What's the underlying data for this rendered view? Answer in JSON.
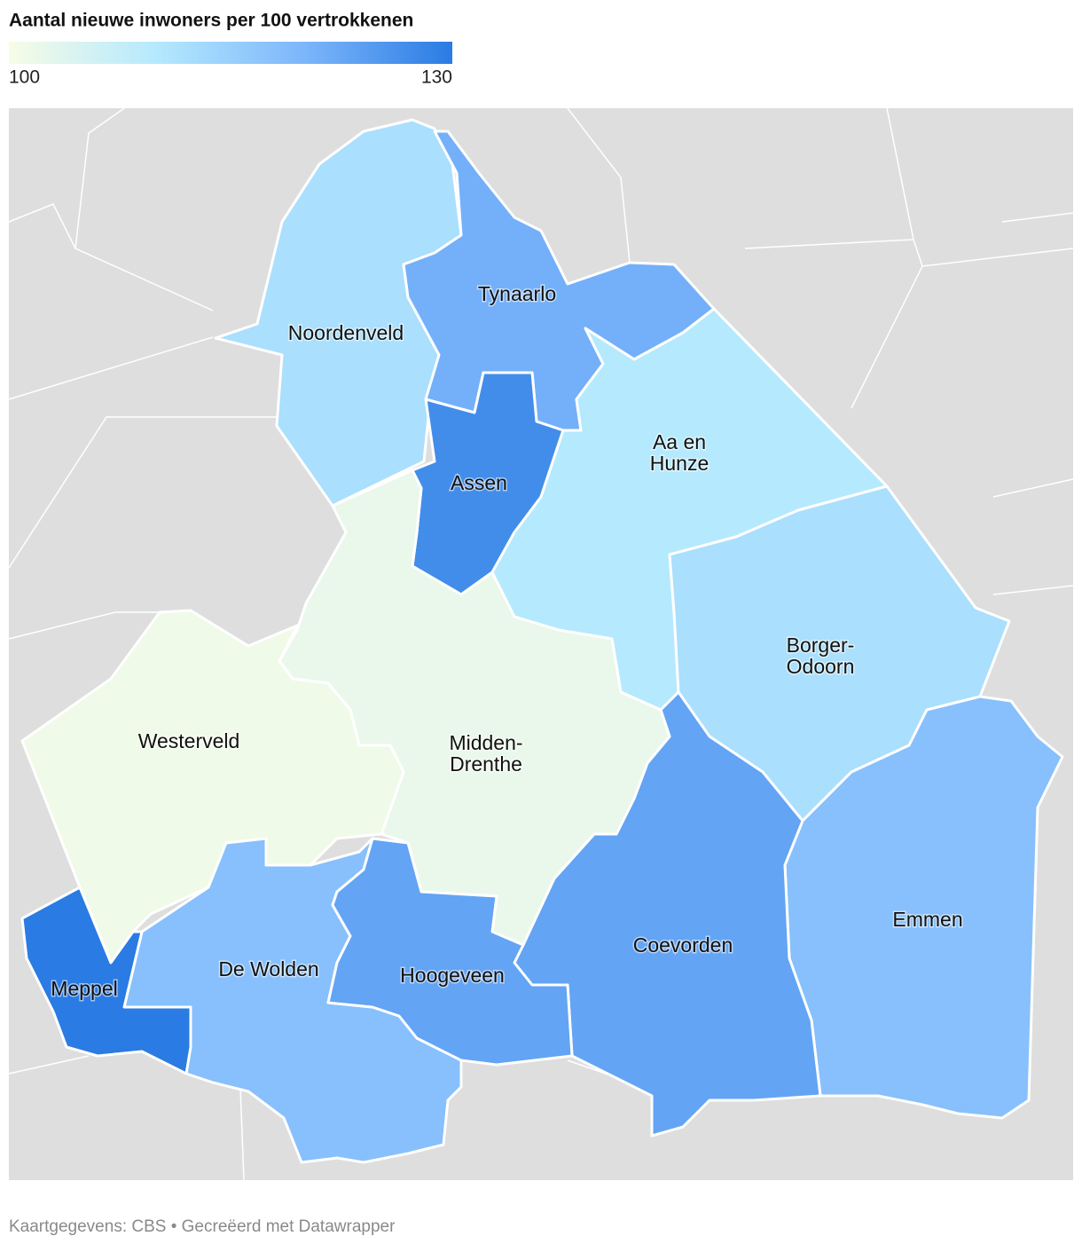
{
  "title": "Aantal nieuwe inwoners per 100 vertrokkenen",
  "legend": {
    "min": 100,
    "max": 130,
    "colors": [
      "#f7fce6",
      "#b5e9fe",
      "#7cb6fb",
      "#2a7be3"
    ]
  },
  "regions": [
    {
      "name": "Noordenveld",
      "value": 112
    },
    {
      "name": "Tynaarlo",
      "value": 121
    },
    {
      "name": "Assen",
      "value": 127
    },
    {
      "name": "Aa en Hunze",
      "value": 110
    },
    {
      "name": "Borger-Odoorn",
      "value": 112
    },
    {
      "name": "Emmen",
      "value": 118
    },
    {
      "name": "Coevorden",
      "value": 123
    },
    {
      "name": "Midden-Drenthe",
      "value": 102
    },
    {
      "name": "Westerveld",
      "value": 101
    },
    {
      "name": "De Wolden",
      "value": 118
    },
    {
      "name": "Hoogeveen",
      "value": 123
    },
    {
      "name": "Meppel",
      "value": 130
    }
  ],
  "footer": "Kaartgegevens: CBS • Gecreëerd met Datawrapper"
}
